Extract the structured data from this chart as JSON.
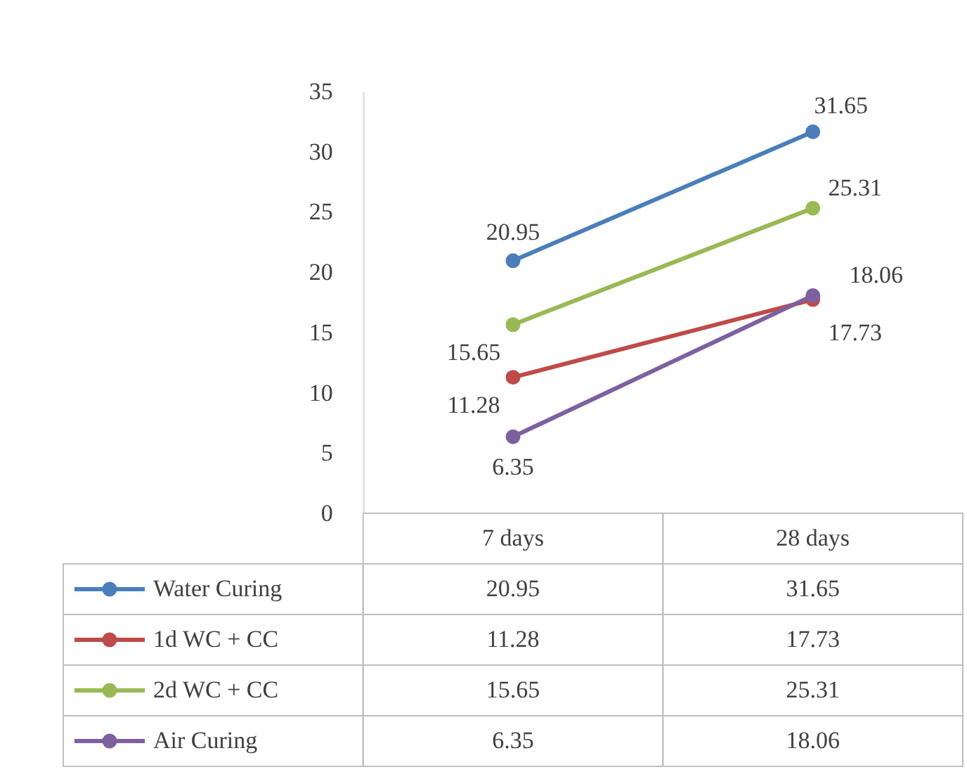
{
  "chart_data": {
    "type": "line",
    "categories": [
      "7 days",
      "28 days"
    ],
    "series": [
      {
        "name": "Water Curing",
        "color": "#4a7ebb",
        "values": [
          20.95,
          31.65
        ]
      },
      {
        "name": "1d WC  + CC",
        "color": "#be4b48",
        "values": [
          11.28,
          17.73
        ]
      },
      {
        "name": "2d WC + CC",
        "color": "#98b954",
        "values": [
          15.65,
          25.31
        ]
      },
      {
        "name": "Air Curing",
        "color": "#7d60a0",
        "values": [
          6.35,
          18.06
        ]
      }
    ],
    "ylim": [
      0,
      35
    ],
    "yticks": [
      0,
      5,
      10,
      15,
      20,
      25,
      30,
      35
    ],
    "annotations": [
      {
        "text": "20.95",
        "x": "7 days",
        "y": 20.95
      },
      {
        "text": "31.65",
        "x": "28 days",
        "y": 31.65
      },
      {
        "text": "11.28",
        "x": "7 days",
        "y": 11.28
      },
      {
        "text": "17.73",
        "x": "28 days",
        "y": 17.73
      },
      {
        "text": "15.65",
        "x": "7 days",
        "y": 15.65
      },
      {
        "text": "25.31",
        "x": "28 days",
        "y": 25.31
      },
      {
        "text": "6.35",
        "x": "7 days",
        "y": 6.35
      },
      {
        "text": "18.06",
        "x": "28 days",
        "y": 18.06
      }
    ],
    "legend": "bottom",
    "marker": "circle",
    "line_style": "solid",
    "data_labels": true
  }
}
